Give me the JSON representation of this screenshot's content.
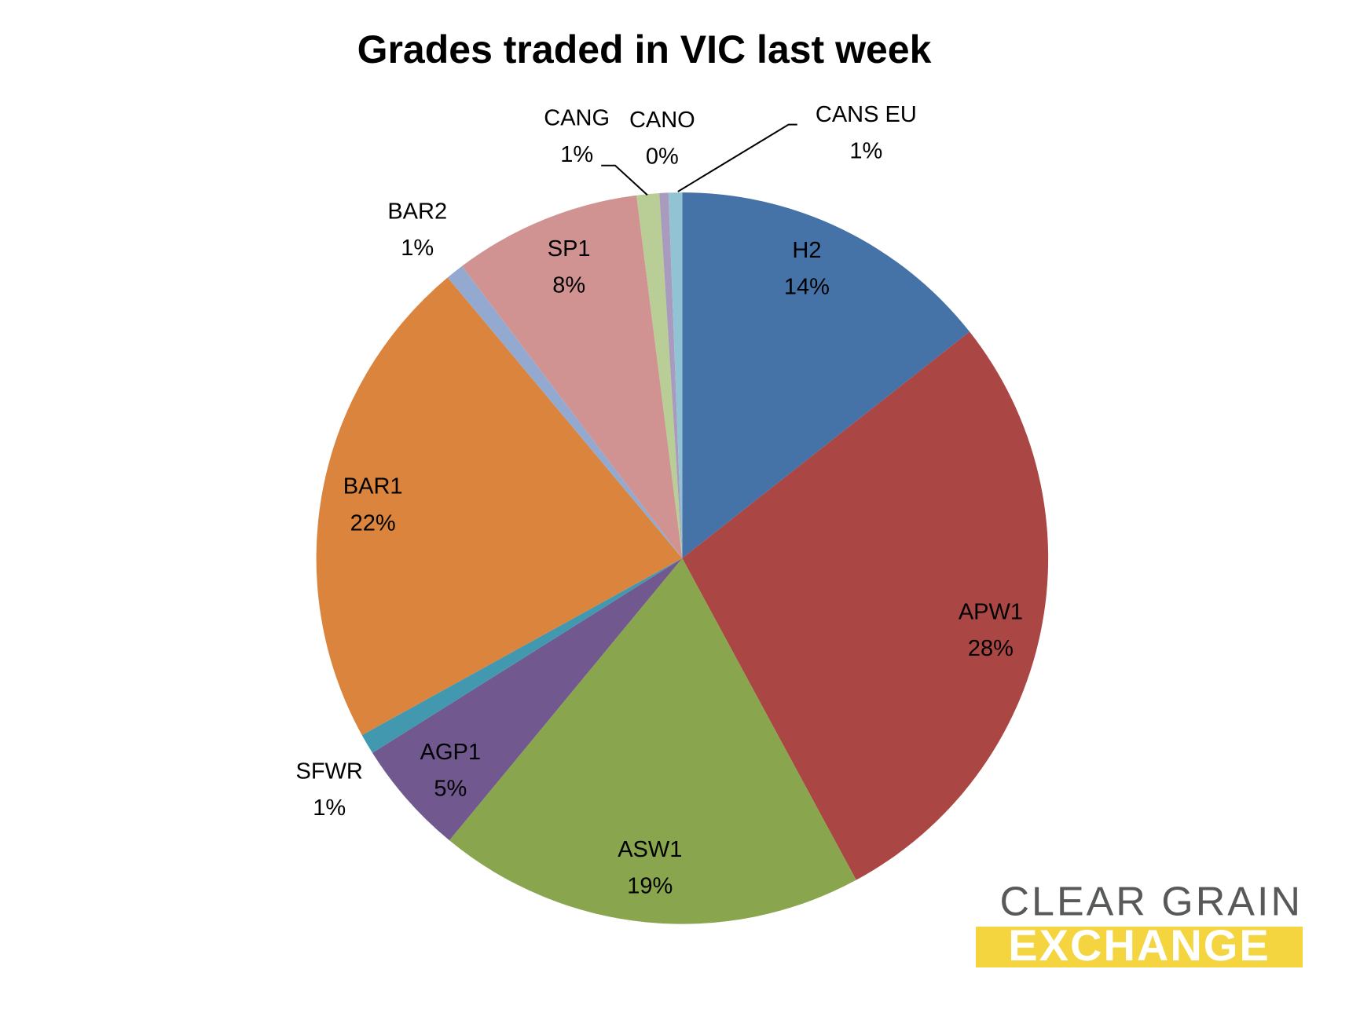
{
  "chart_data": {
    "type": "pie",
    "title": "Grades traded in VIC last week",
    "categories": [
      "H2",
      "APW1",
      "ASW1",
      "AGP1",
      "SFWR",
      "BAR1",
      "BAR2",
      "SP1",
      "CANG",
      "CANO",
      "CANS EU"
    ],
    "values": [
      14.4,
      27.8,
      18.9,
      5.1,
      0.9,
      22.0,
      0.8,
      8.3,
      1.0,
      0.4,
      0.6
    ],
    "value_labels": [
      "14%",
      "28%",
      "19%",
      "5%",
      "1%",
      "22%",
      "1%",
      "8%",
      "1%",
      "0%",
      "1%"
    ],
    "colors": [
      "#4572a7",
      "#aa4643",
      "#89a54e",
      "#71588f",
      "#4198af",
      "#db843d",
      "#93a9cf",
      "#d19392",
      "#b9cd96",
      "#a99bbd",
      "#92c3d4"
    ]
  },
  "logo": {
    "line1": "CLEAR GRAIN",
    "line2": "EXCHANGE"
  }
}
